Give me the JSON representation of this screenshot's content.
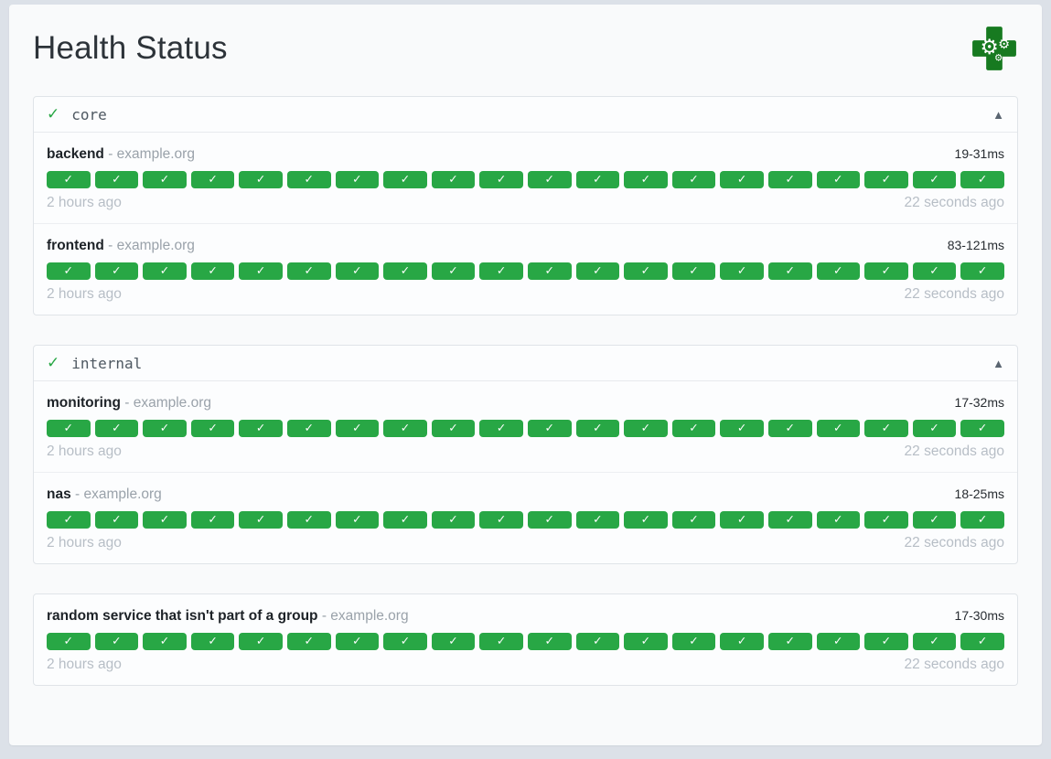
{
  "page": {
    "title": "Health Status"
  },
  "icons": {
    "group_status": "✓",
    "collapse": "▲",
    "badge_check": "✓"
  },
  "colors": {
    "success": "#28a745",
    "logo_cross": "#177a20",
    "logo_gears": "#ffffff",
    "background": "#dce1e8",
    "card_background": "#f9fafb"
  },
  "groups": [
    {
      "name": "core",
      "healthy": true,
      "endpoints": [
        {
          "name": "backend",
          "separator": "-",
          "hostname": "example.org",
          "response_time": "19-31ms",
          "oldest_result": "2 hours ago",
          "newest_result": "22 seconds ago",
          "results": {
            "count": 20,
            "status": "success"
          }
        },
        {
          "name": "frontend",
          "separator": "-",
          "hostname": "example.org",
          "response_time": "83-121ms",
          "oldest_result": "2 hours ago",
          "newest_result": "22 seconds ago",
          "results": {
            "count": 20,
            "status": "success"
          }
        }
      ]
    },
    {
      "name": "internal",
      "healthy": true,
      "endpoints": [
        {
          "name": "monitoring",
          "separator": "-",
          "hostname": "example.org",
          "response_time": "17-32ms",
          "oldest_result": "2 hours ago",
          "newest_result": "22 seconds ago",
          "results": {
            "count": 20,
            "status": "success"
          }
        },
        {
          "name": "nas",
          "separator": "-",
          "hostname": "example.org",
          "response_time": "18-25ms",
          "oldest_result": "2 hours ago",
          "newest_result": "22 seconds ago",
          "results": {
            "count": 20,
            "status": "success"
          }
        }
      ]
    },
    {
      "name": "",
      "healthy": true,
      "endpoints": [
        {
          "name": "random service that isn't part of a group",
          "separator": "-",
          "hostname": "example.org",
          "response_time": "17-30ms",
          "oldest_result": "2 hours ago",
          "newest_result": "22 seconds ago",
          "results": {
            "count": 20,
            "status": "success"
          }
        }
      ]
    }
  ]
}
